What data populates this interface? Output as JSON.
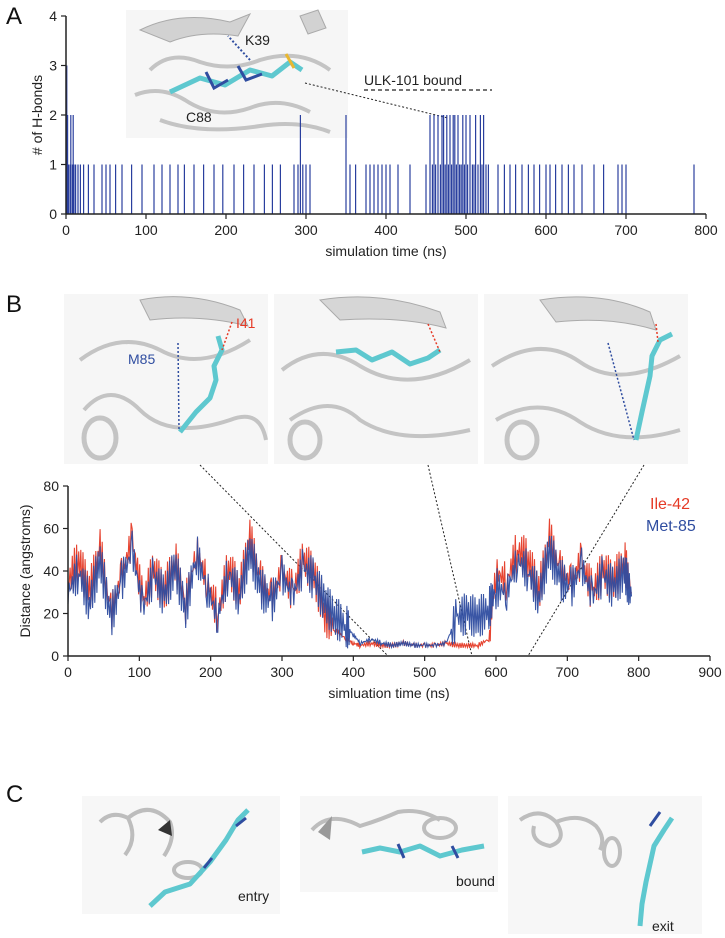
{
  "panel_labels": [
    "A",
    "B",
    "C"
  ],
  "colors": {
    "hbond": "#2a3f9e",
    "ile42": "#e53a26",
    "met85": "#2f4da0",
    "ligand": "#5ec8cf",
    "protein": "#c9c9c9"
  },
  "panelA": {
    "annotations": {
      "k39": "K39",
      "c88": "C88",
      "bound": "ULK-101 bound"
    }
  },
  "panelB": {
    "annotations": {
      "m85": "M85",
      "i41": "I41"
    }
  },
  "panelC": {
    "labels": [
      "entry",
      "bound",
      "exit"
    ]
  },
  "chart_data": [
    {
      "id": "hbonds",
      "type": "bar",
      "title": "",
      "xlabel": "simulation time (ns)",
      "ylabel": "# of H-bonds",
      "xlim": [
        0,
        800
      ],
      "ylim": [
        0,
        4
      ],
      "xticks": [
        0,
        100,
        200,
        300,
        400,
        500,
        600,
        700,
        800
      ],
      "yticks": [
        0,
        1,
        2,
        3,
        4
      ],
      "series": [
        {
          "name": "H-bonds",
          "color": "#2a3f9e",
          "x": [
            1,
            2,
            3,
            5,
            6,
            8,
            9,
            10,
            12,
            15,
            18,
            22,
            28,
            35,
            45,
            50,
            55,
            62,
            70,
            82,
            95,
            110,
            120,
            130,
            140,
            148,
            160,
            172,
            185,
            196,
            210,
            222,
            235,
            248,
            258,
            268,
            285,
            290,
            293,
            296,
            300,
            305,
            350,
            355,
            362,
            375,
            380,
            385,
            390,
            395,
            400,
            405,
            415,
            430,
            450,
            455,
            458,
            460,
            462,
            465,
            468,
            470,
            472,
            474,
            476,
            478,
            480,
            482,
            484,
            486,
            488,
            490,
            492,
            494,
            496,
            498,
            500,
            502,
            505,
            508,
            510,
            512,
            515,
            518,
            520,
            522,
            525,
            528,
            540,
            548,
            555,
            562,
            570,
            578,
            585,
            592,
            600,
            605,
            612,
            620,
            628,
            635,
            645,
            660,
            672,
            690,
            695,
            700,
            785
          ],
          "values": [
            3,
            2,
            1,
            1,
            2,
            1,
            2,
            1,
            1,
            1,
            1,
            1,
            1,
            1,
            1,
            1,
            1,
            1,
            1,
            1,
            1,
            1,
            1,
            1,
            1,
            1,
            1,
            1,
            1,
            1,
            1,
            1,
            1,
            1,
            1,
            1,
            1,
            1,
            2,
            1,
            1,
            1,
            2,
            1,
            1,
            1,
            1,
            1,
            1,
            1,
            1,
            1,
            1,
            1,
            1,
            2,
            1,
            2,
            1,
            2,
            1,
            2,
            2,
            1,
            2,
            1,
            2,
            1,
            2,
            2,
            1,
            2,
            1,
            1,
            2,
            1,
            2,
            1,
            2,
            1,
            1,
            2,
            1,
            2,
            1,
            2,
            1,
            1,
            1,
            1,
            1,
            1,
            1,
            1,
            1,
            1,
            1,
            1,
            1,
            1,
            1,
            1,
            1,
            1,
            1,
            1,
            1,
            1,
            1
          ]
        }
      ]
    },
    {
      "id": "distance",
      "type": "line",
      "title": "",
      "xlabel": "simluation time (ns)",
      "ylabel": "Distance (angstroms)",
      "xlim": [
        0,
        900
      ],
      "ylim": [
        0,
        80
      ],
      "xticks": [
        0,
        100,
        200,
        300,
        400,
        500,
        600,
        700,
        800,
        900
      ],
      "yticks": [
        0,
        20,
        40,
        60,
        80
      ],
      "series": [
        {
          "name": "Ile-42",
          "color": "#e53a26",
          "x": [
            0,
            15,
            30,
            45,
            60,
            75,
            90,
            105,
            120,
            135,
            150,
            165,
            180,
            195,
            210,
            225,
            240,
            255,
            270,
            285,
            300,
            315,
            330,
            345,
            360,
            375,
            390,
            400,
            410,
            425,
            440,
            455,
            470,
            485,
            500,
            515,
            530,
            545,
            560,
            575,
            590,
            600,
            615,
            630,
            645,
            660,
            675,
            690,
            705,
            720,
            735,
            750,
            765,
            780,
            790
          ],
          "values": [
            35,
            45,
            30,
            50,
            20,
            38,
            55,
            25,
            40,
            30,
            45,
            25,
            50,
            35,
            20,
            42,
            30,
            55,
            35,
            28,
            40,
            30,
            45,
            38,
            20,
            12,
            8,
            6,
            5,
            6,
            5,
            5,
            6,
            5,
            5,
            5,
            6,
            5,
            5,
            5,
            8,
            40,
            35,
            50,
            45,
            30,
            55,
            40,
            35,
            45,
            30,
            40,
            35,
            45,
            30
          ]
        },
        {
          "name": "Met-85",
          "color": "#2f4da0",
          "x": [
            0,
            15,
            30,
            45,
            60,
            75,
            90,
            105,
            120,
            135,
            150,
            165,
            180,
            195,
            210,
            225,
            240,
            255,
            270,
            285,
            300,
            315,
            330,
            345,
            360,
            375,
            390,
            400,
            410,
            425,
            440,
            455,
            470,
            485,
            500,
            515,
            530,
            545,
            560,
            575,
            590,
            600,
            615,
            630,
            645,
            660,
            675,
            690,
            705,
            720,
            735,
            750,
            765,
            780,
            790
          ],
          "values": [
            30,
            40,
            25,
            45,
            18,
            35,
            50,
            22,
            38,
            28,
            42,
            22,
            48,
            32,
            18,
            40,
            28,
            50,
            32,
            25,
            38,
            28,
            42,
            36,
            25,
            18,
            14,
            10,
            6,
            8,
            6,
            5,
            6,
            5,
            5,
            5,
            6,
            18,
            20,
            18,
            22,
            32,
            30,
            45,
            40,
            28,
            50,
            36,
            32,
            42,
            28,
            38,
            32,
            40,
            28
          ]
        }
      ]
    }
  ]
}
